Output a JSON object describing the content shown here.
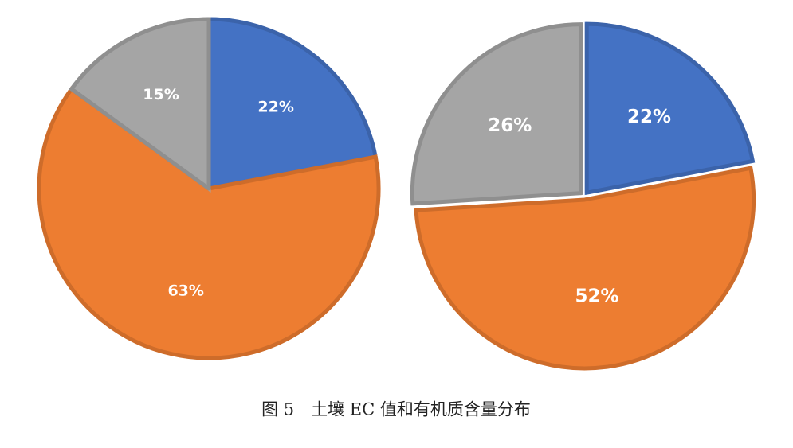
{
  "chart_data": [
    {
      "type": "pie",
      "values": [
        22,
        63,
        15
      ],
      "value_labels": [
        "22%",
        "63%",
        "15%"
      ],
      "colors": [
        "#4472c4",
        "#ed7d31",
        "#a5a5a5"
      ]
    },
    {
      "type": "pie",
      "values": [
        22,
        52,
        26
      ],
      "value_labels": [
        "22%",
        "52%",
        "26%"
      ],
      "colors": [
        "#4472c4",
        "#ed7d31",
        "#a5a5a5"
      ]
    }
  ],
  "caption": "图 5　土壤 EC 值和有机质含量分布"
}
